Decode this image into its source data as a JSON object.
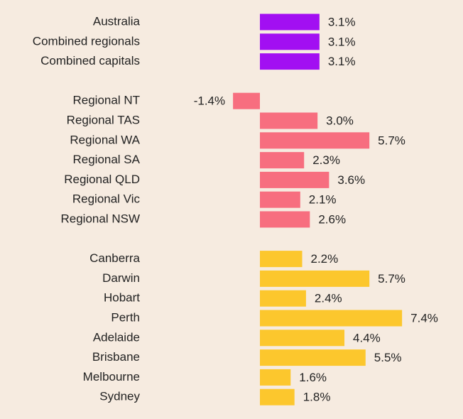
{
  "chart_data": {
    "type": "bar",
    "orientation": "horizontal",
    "groups": [
      {
        "color": "#a20ff2",
        "categories": [
          "Australia",
          "Combined regionals",
          "Combined capitals"
        ],
        "values": [
          3.1,
          3.1,
          3.1
        ],
        "value_labels": [
          "3.1%",
          "3.1%",
          "3.1%"
        ]
      },
      {
        "color": "#f76e7f",
        "categories": [
          "Regional NT",
          "Regional TAS",
          "Regional WA",
          "Regional SA",
          "Regional QLD",
          "Regional Vic",
          "Regional NSW"
        ],
        "values": [
          -1.4,
          3.0,
          5.7,
          2.3,
          3.6,
          2.1,
          2.6
        ],
        "value_labels": [
          "-1.4%",
          "3.0%",
          "5.7%",
          "2.3%",
          "3.6%",
          "2.1%",
          "2.6%"
        ]
      },
      {
        "color": "#fcc72d",
        "categories": [
          "Canberra",
          "Darwin",
          "Hobart",
          "Perth",
          "Adelaide",
          "Brisbane",
          "Melbourne",
          "Sydney"
        ],
        "values": [
          2.2,
          5.7,
          2.4,
          7.4,
          4.4,
          5.5,
          1.6,
          1.8
        ],
        "value_labels": [
          "2.2%",
          "5.7%",
          "2.4%",
          "7.4%",
          "4.4%",
          "5.5%",
          "1.6%",
          "1.8%"
        ]
      }
    ]
  }
}
